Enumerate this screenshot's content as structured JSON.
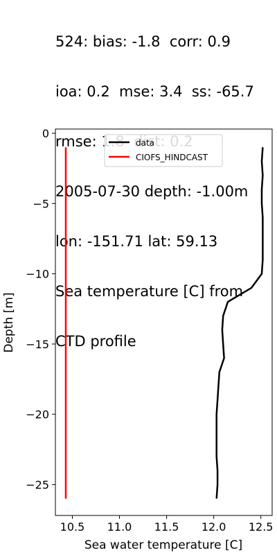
{
  "title_lines": [
    "524: bias: -1.8  corr: 0.9",
    "ioa: 0.2  mse: 3.4  ss: -65.7",
    "rmse: 1.8  dist: 0.2",
    "2005-07-30 depth: -1.00m",
    "lon: -151.71 lat: 59.13",
    "Sea temperature [C] from",
    "CTD profile"
  ],
  "chart_data": {
    "type": "line",
    "xlabel": "Sea water temperature [C]",
    "ylabel": "Depth [m]",
    "xlim": [
      10.32,
      12.62
    ],
    "ylim": [
      -27.2,
      0.3
    ],
    "xticks": [
      10.5,
      11.0,
      11.5,
      12.0,
      12.5
    ],
    "xtick_labels": [
      "10.5",
      "11.0",
      "11.5",
      "12.0",
      "12.5"
    ],
    "yticks": [
      0,
      -5,
      -10,
      -15,
      -20,
      -25
    ],
    "ytick_labels": [
      "0",
      "−5",
      "−10",
      "−15",
      "−20",
      "−25"
    ],
    "legend_position": "upper-center",
    "series": [
      {
        "name": "data",
        "color": "#000000",
        "x": [
          12.52,
          12.51,
          12.52,
          12.51,
          12.51,
          12.52,
          12.52,
          12.52,
          12.52,
          12.51,
          12.4,
          12.15,
          12.1,
          12.09,
          12.1,
          12.11,
          12.06,
          12.05,
          12.04,
          12.03,
          12.03,
          12.03,
          12.03,
          12.04,
          12.04,
          12.03
        ],
        "y": [
          -1,
          -2,
          -3,
          -4,
          -5,
          -6,
          -7,
          -8,
          -9,
          -10,
          -11,
          -12,
          -13,
          -14,
          -15,
          -16,
          -17,
          -18,
          -19,
          -20,
          -21,
          -22,
          -23,
          -24,
          -25,
          -26
        ]
      },
      {
        "name": "CIOFS_HINDCAST",
        "color": "#ff0000",
        "x": [
          10.43,
          10.43,
          10.43,
          10.43,
          10.43,
          10.43,
          10.43,
          10.43,
          10.43,
          10.43,
          10.43,
          10.43,
          10.43,
          10.43,
          10.43,
          10.43,
          10.43,
          10.43,
          10.43,
          10.43,
          10.43,
          10.43,
          10.43,
          10.43,
          10.43,
          10.43
        ],
        "y": [
          -1,
          -2,
          -3,
          -4,
          -5,
          -6,
          -7,
          -8,
          -9,
          -10,
          -11,
          -12,
          -13,
          -14,
          -15,
          -16,
          -17,
          -18,
          -19,
          -20,
          -21,
          -22,
          -23,
          -24,
          -25,
          -26
        ]
      }
    ]
  }
}
